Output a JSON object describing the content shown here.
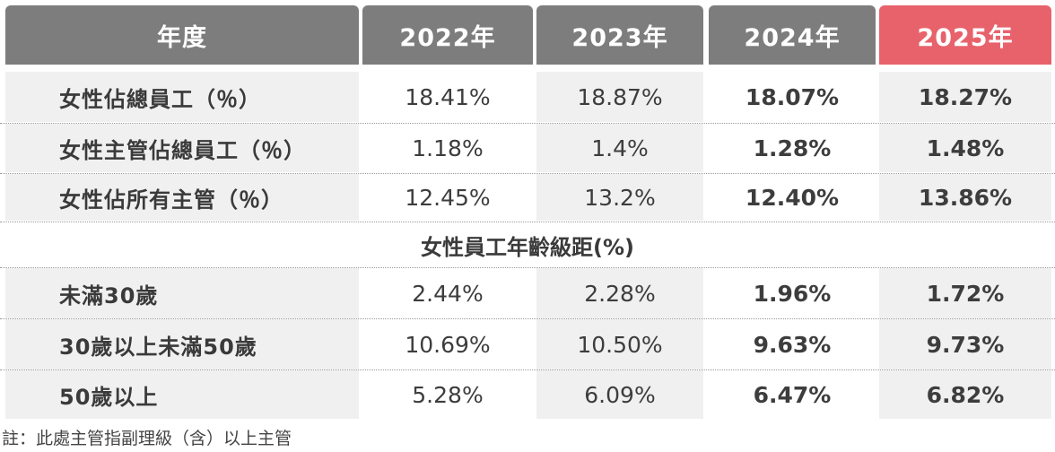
{
  "header": {
    "label": "年度",
    "years": [
      "2022年",
      "2023年",
      "2024年",
      "2025年"
    ],
    "accent_color": "#e8626b",
    "header_color": "#7d7d7d"
  },
  "rows_top": [
    {
      "label": "女性佔總員工（％）",
      "values": [
        "18.41%",
        "18.87%",
        "18.07%",
        "18.27%"
      ]
    },
    {
      "label": "女性主管佔總員工（％）",
      "values": [
        "1.18%",
        "1.4%",
        "1.28%",
        "1.48%"
      ]
    },
    {
      "label": "女性佔所有主管（％）",
      "values": [
        "12.45%",
        "13.2%",
        "12.40%",
        "13.86%"
      ]
    }
  ],
  "section_title": "女性員工年齡級距(%)",
  "rows_bottom": [
    {
      "label": "未滿30歲",
      "values": [
        "2.44%",
        "2.28%",
        "1.96%",
        "1.72%"
      ]
    },
    {
      "label": "30歲以上未滿50歲",
      "values": [
        "10.69%",
        "10.50%",
        "9.63%",
        "9.73%"
      ]
    },
    {
      "label": "50歲以上",
      "values": [
        "5.28%",
        "6.09%",
        "6.47%",
        "6.82%"
      ]
    }
  ],
  "note": "註：此處主管指副理級（含）以上主管"
}
